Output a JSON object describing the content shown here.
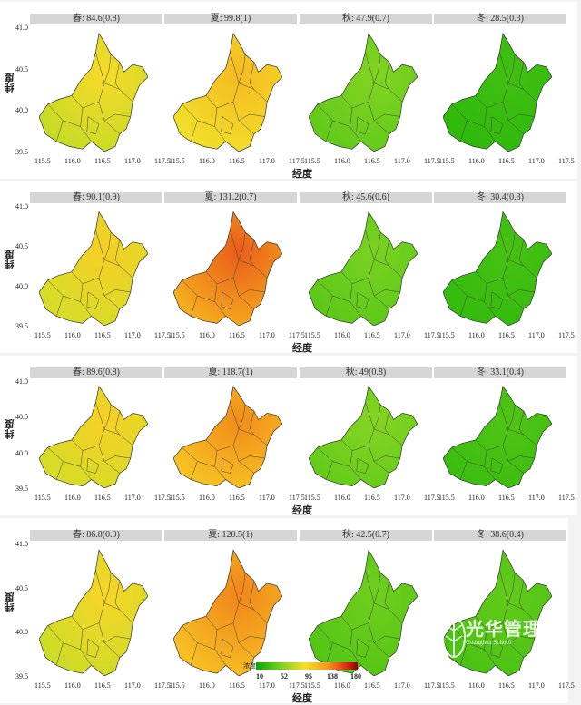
{
  "axis": {
    "xlabel": "经度",
    "ylabel": "纬度",
    "x_ticks": [
      "115.5",
      "116.0",
      "116.5",
      "117.0",
      "117.5"
    ],
    "y_ticks": [
      "41.0",
      "40.5",
      "40.0",
      "39.5"
    ]
  },
  "rows": [
    {
      "panels": [
        {
          "strip": "春: 84.6(0.8)",
          "value": 84.6
        },
        {
          "strip": "夏: 99.8(1)",
          "value": 99.8
        },
        {
          "strip": "秋: 47.9(0.7)",
          "value": 47.9
        },
        {
          "strip": "冬: 28.5(0.3)",
          "value": 28.5
        }
      ]
    },
    {
      "panels": [
        {
          "strip": "春: 90.1(0.9)",
          "value": 90.1
        },
        {
          "strip": "夏: 131.2(0.7)",
          "value": 131.2
        },
        {
          "strip": "秋: 45.6(0.6)",
          "value": 45.6
        },
        {
          "strip": "冬: 30.4(0.3)",
          "value": 30.4
        }
      ]
    },
    {
      "panels": [
        {
          "strip": "春: 89.6(0.8)",
          "value": 89.6
        },
        {
          "strip": "夏: 118.7(1)",
          "value": 118.7
        },
        {
          "strip": "秋: 49(0.8)",
          "value": 49
        },
        {
          "strip": "冬: 33.1(0.4)",
          "value": 33.1
        }
      ]
    },
    {
      "panels": [
        {
          "strip": "春: 86.8(0.9)",
          "value": 86.8
        },
        {
          "strip": "夏: 120.5(1)",
          "value": 120.5
        },
        {
          "strip": "秋: 42.5(0.7)",
          "value": 42.5
        },
        {
          "strip": "冬: 38.6(0.4)",
          "value": 38.6
        }
      ]
    }
  ],
  "legend": {
    "title": "浓度",
    "labels": [
      "10",
      "52",
      "95",
      "138",
      "180"
    ],
    "range": [
      10,
      180
    ]
  },
  "watermark": {
    "text": "光华管理",
    "sub": "Guanghua School"
  }
}
